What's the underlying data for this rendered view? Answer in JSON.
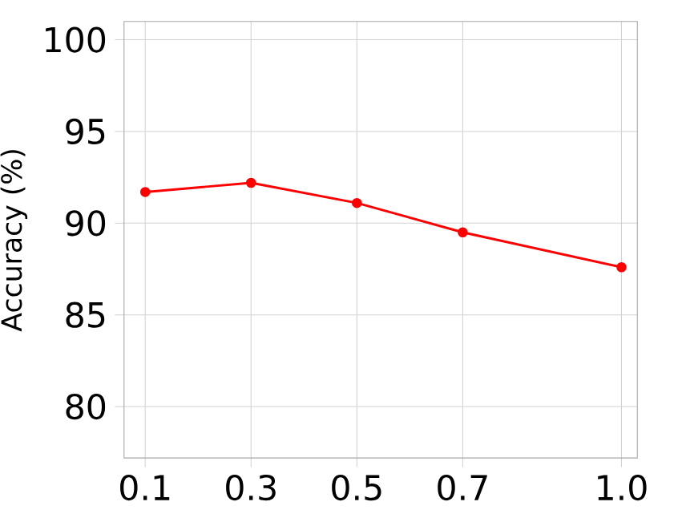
{
  "chart_data": {
    "type": "line",
    "ylabel": "Accuracy (%)",
    "x": [
      0.1,
      0.3,
      0.5,
      0.7,
      1.0
    ],
    "series": [
      {
        "color": "#ff0000",
        "values": [
          91.7,
          92.2,
          91.1,
          89.5,
          87.6
        ]
      }
    ],
    "xlim": [
      0.06,
      1.03
    ],
    "xticks": [
      0.1,
      0.3,
      0.5,
      0.7,
      {
        "value": 1.0,
        "label": "1.0"
      }
    ],
    "ylim": [
      77.2,
      101
    ],
    "yticks": [
      80,
      85,
      90,
      95,
      100
    ],
    "grid": true,
    "marker": "circle",
    "line_style": "solid"
  }
}
